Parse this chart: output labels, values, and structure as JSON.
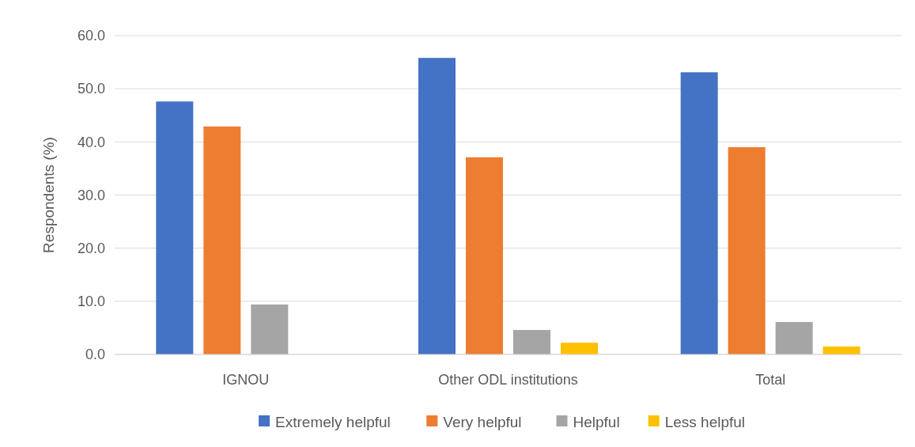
{
  "chart_data": {
    "type": "bar",
    "ylabel": "Respondents (%)",
    "categories": [
      "IGNOU",
      "Other ODL institutions",
      "Total"
    ],
    "series": [
      {
        "name": "Extremely helpful",
        "color": "#4472c4",
        "values": [
          47.6,
          55.8,
          53.1
        ]
      },
      {
        "name": "Very helpful",
        "color": "#ed7d31",
        "values": [
          42.9,
          37.1,
          39.0
        ]
      },
      {
        "name": "Helpful",
        "color": "#a5a5a5",
        "values": [
          9.4,
          4.6,
          6.1
        ]
      },
      {
        "name": "Less helpful",
        "color": "#ffc000",
        "values": [
          null,
          2.2,
          1.5
        ]
      }
    ],
    "ylim": [
      0,
      60
    ],
    "yticks": [
      {
        "value": 0,
        "label": "0.0"
      },
      {
        "value": 10,
        "label": "10.0"
      },
      {
        "value": 20,
        "label": "20.0"
      },
      {
        "value": 30,
        "label": "30.0"
      },
      {
        "value": 40,
        "label": "40.0"
      },
      {
        "value": 50,
        "label": "50.0"
      },
      {
        "value": 60,
        "label": "60.0"
      }
    ],
    "grid": "y",
    "legend": "bottom"
  }
}
